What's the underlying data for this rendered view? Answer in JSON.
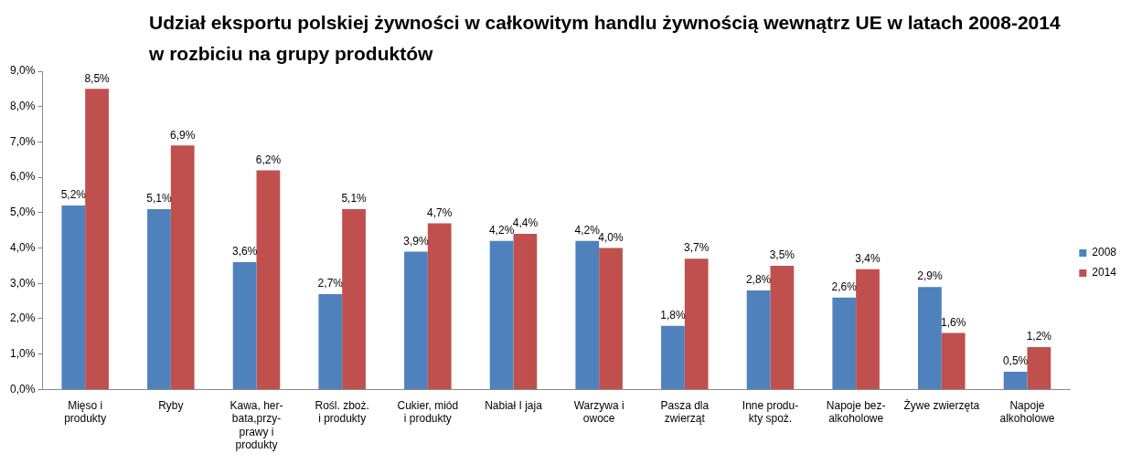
{
  "chart_data": {
    "type": "bar",
    "title": "Udział eksportu polskiej żywności w całkowitym handlu żywnością wewnątrz UE w latach 2008-2014\nw rozbiciu na grupy produktów",
    "categories": [
      "Mięso i\nprodukty",
      "Ryby",
      "Kawa, her-\nbata,przy-\nprawy i\nprodukty",
      "Rośl. zboż.\ni produkty",
      "Cukier, miód\ni produkty",
      "Nabiał I jaja",
      "Warzywa i\nowoce",
      "Pasza dla\nzwierząt",
      "Inne produ-\nkty spoż.",
      "Napoje bez-\nalkoholowe",
      "Żywe zwierzęta",
      "Napoje\nalkoholowe"
    ],
    "series": [
      {
        "name": "2008",
        "color": "#4f81bd",
        "values": [
          5.2,
          5.1,
          3.6,
          2.7,
          3.9,
          4.2,
          4.2,
          1.8,
          2.8,
          2.6,
          2.9,
          0.5
        ],
        "value_labels": [
          "5,2%",
          "5,1%",
          "3,6%",
          "2,7%",
          "3,9%",
          "4,2%",
          "4,2%",
          "1,8%",
          "2,8%",
          "2,6%",
          "2,9%",
          "0,5%"
        ]
      },
      {
        "name": "2014",
        "color": "#c0504d",
        "values": [
          8.5,
          6.9,
          6.2,
          5.1,
          4.7,
          4.4,
          4.0,
          3.7,
          3.5,
          3.4,
          1.6,
          1.2
        ],
        "value_labels": [
          "8,5%",
          "6,9%",
          "6,2%",
          "5,1%",
          "4,7%",
          "4,4%",
          "4,0%",
          "3,7%",
          "3,5%",
          "3,4%",
          "1,6%",
          "1,2%"
        ]
      }
    ],
    "ylim": [
      0,
      9
    ],
    "yticks": [
      {
        "value": 0,
        "label": "0,0%"
      },
      {
        "value": 1,
        "label": "1,0%"
      },
      {
        "value": 2,
        "label": "2,0%"
      },
      {
        "value": 3,
        "label": "3,0%"
      },
      {
        "value": 4,
        "label": "4,0%"
      },
      {
        "value": 5,
        "label": "5,0%"
      },
      {
        "value": 6,
        "label": "6,0%"
      },
      {
        "value": 7,
        "label": "7,0%"
      },
      {
        "value": 8,
        "label": "8,0%"
      },
      {
        "value": 9,
        "label": "9,0%"
      }
    ],
    "grid": false,
    "legend": "right"
  }
}
